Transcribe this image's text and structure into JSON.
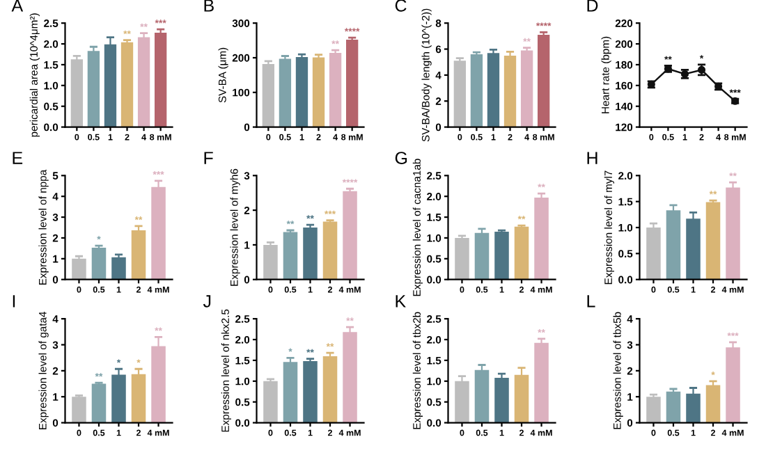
{
  "chart_data": [
    {
      "type": "bar",
      "title": "A",
      "ylabel": "pericardial area (10^4μm²)",
      "categories": [
        "0",
        "0.5",
        "1",
        "2",
        "4",
        "8 mM"
      ],
      "values": [
        1.63,
        1.83,
        1.99,
        2.04,
        2.16,
        2.27
      ],
      "errors": [
        0.08,
        0.1,
        0.17,
        0.05,
        0.1,
        0.08
      ],
      "colors": [
        "#bdbdbd",
        "#7fa3aa",
        "#4e7585",
        "#d9b574",
        "#dcb1bf",
        "#b5646c"
      ],
      "ylim": [
        0,
        2.5
      ],
      "yticks": [
        {
          "value": 0,
          "label": "0.0"
        },
        {
          "value": 0.5,
          "label": "0.5"
        },
        {
          "value": 1,
          "label": "1.0"
        },
        {
          "value": 1.5,
          "label": "1.5"
        },
        {
          "value": 2,
          "label": "2.0"
        },
        {
          "value": 2.5,
          "label": "2.5"
        }
      ],
      "annotations": [
        {
          "text": "**",
          "x": "2",
          "y": 2.09
        },
        {
          "text": "**",
          "x": "4",
          "y": 2.26
        },
        {
          "text": "***",
          "x": "8 mM",
          "y": 2.35
        }
      ]
    },
    {
      "type": "bar",
      "title": "B",
      "ylabel": "SV-BA (μm)",
      "categories": [
        "0",
        "0.5",
        "1",
        "2",
        "4",
        "8 mM"
      ],
      "values": [
        182,
        197,
        202,
        201,
        214,
        252
      ],
      "errors": [
        8,
        8,
        8,
        8,
        8,
        6
      ],
      "colors": [
        "#bdbdbd",
        "#7fa3aa",
        "#4e7585",
        "#d9b574",
        "#dcb1bf",
        "#b5646c"
      ],
      "ylim": [
        0,
        300
      ],
      "yticks": [
        0,
        100,
        200,
        300
      ],
      "annotations": [
        {
          "text": "**",
          "x": "4",
          "y": 222
        },
        {
          "text": "****",
          "x": "8 mM",
          "y": 258
        }
      ]
    },
    {
      "type": "bar",
      "title": "C",
      "ylabel": "SV-BA/Body length (10^(-2))",
      "categories": [
        "0",
        "0.5",
        "1",
        "2",
        "4",
        "8 mM"
      ],
      "values": [
        5.1,
        5.6,
        5.7,
        5.5,
        5.9,
        7.1
      ],
      "errors": [
        0.2,
        0.15,
        0.25,
        0.3,
        0.2,
        0.2
      ],
      "colors": [
        "#bdbdbd",
        "#7fa3aa",
        "#4e7585",
        "#d9b574",
        "#dcb1bf",
        "#b5646c"
      ],
      "ylim": [
        0,
        8
      ],
      "yticks": [
        0,
        2,
        4,
        6,
        8
      ],
      "annotations": [
        {
          "text": "**",
          "x": "4",
          "y": 6.1
        },
        {
          "text": "****",
          "x": "8 mM",
          "y": 7.3
        }
      ]
    },
    {
      "type": "line",
      "title": "D",
      "ylabel": "Heart rate (bpm)",
      "categories": [
        "0",
        "0.5",
        "1",
        "2",
        "4",
        "8 mM"
      ],
      "values": [
        161,
        176,
        171,
        175,
        159,
        145
      ],
      "errors": [
        3,
        3,
        4,
        5,
        3,
        2
      ],
      "color": "#111111",
      "marker": "circle",
      "ylim": [
        120,
        220
      ],
      "yticks": [
        120,
        140,
        160,
        180,
        200,
        220
      ],
      "annotations": [
        {
          "text": "**",
          "x": "0.5",
          "y": 179
        },
        {
          "text": "*",
          "x": "2",
          "y": 180
        },
        {
          "text": "***",
          "x": "8 mM",
          "y": 147
        }
      ]
    },
    {
      "type": "bar",
      "title": "E",
      "ylabel": "Expression level of nppa",
      "categories": [
        "0",
        "0.5",
        "1",
        "2",
        "4 mM"
      ],
      "values": [
        1.0,
        1.53,
        1.07,
        2.37,
        4.45
      ],
      "errors": [
        0.12,
        0.1,
        0.13,
        0.2,
        0.3
      ],
      "colors": [
        "#bdbdbd",
        "#7fa3aa",
        "#4e7585",
        "#d9b574",
        "#dcb1bf"
      ],
      "ylim": [
        0,
        5
      ],
      "yticks": [
        0,
        1,
        2,
        3,
        4,
        5
      ],
      "annotations": [
        {
          "text": "*",
          "x": "0.5",
          "y": 1.63
        },
        {
          "text": "**",
          "x": "2",
          "y": 2.57
        },
        {
          "text": "***",
          "x": "4 mM",
          "y": 4.75
        }
      ]
    },
    {
      "type": "bar",
      "title": "F",
      "ylabel": "Expression level of myh6",
      "categories": [
        "0",
        "0.5",
        "1",
        "2",
        "4 mM"
      ],
      "values": [
        1.0,
        1.37,
        1.5,
        1.67,
        2.55
      ],
      "errors": [
        0.07,
        0.05,
        0.08,
        0.04,
        0.07
      ],
      "colors": [
        "#bdbdbd",
        "#7fa3aa",
        "#4e7585",
        "#d9b574",
        "#dcb1bf"
      ],
      "ylim": [
        0,
        3
      ],
      "yticks": [
        0,
        1,
        2,
        3
      ],
      "annotations": [
        {
          "text": "**",
          "x": "0.5",
          "y": 1.42
        },
        {
          "text": "**",
          "x": "1",
          "y": 1.58
        },
        {
          "text": "***",
          "x": "2",
          "y": 1.71
        },
        {
          "text": "****",
          "x": "4 mM",
          "y": 2.62
        }
      ]
    },
    {
      "type": "bar",
      "title": "G",
      "ylabel": "Expression level of cacna1ab",
      "categories": [
        "0",
        "0.5",
        "1",
        "2",
        "4 mM"
      ],
      "values": [
        1.0,
        1.12,
        1.15,
        1.27,
        1.97
      ],
      "errors": [
        0.05,
        0.1,
        0.03,
        0.03,
        0.1
      ],
      "colors": [
        "#bdbdbd",
        "#7fa3aa",
        "#4e7585",
        "#d9b574",
        "#dcb1bf"
      ],
      "ylim": [
        0,
        2.5
      ],
      "yticks": [
        {
          "value": 0,
          "label": "0.0"
        },
        {
          "value": 0.5,
          "label": "0.5"
        },
        {
          "value": 1,
          "label": "1.0"
        },
        {
          "value": 1.5,
          "label": "1.5"
        },
        {
          "value": 2,
          "label": "2.0"
        },
        {
          "value": 2.5,
          "label": "2.5"
        }
      ],
      "annotations": [
        {
          "text": "**",
          "x": "2",
          "y": 1.3
        },
        {
          "text": "**",
          "x": "4 mM",
          "y": 2.07
        }
      ]
    },
    {
      "type": "bar",
      "title": "H",
      "ylabel": "Expression level of myl7",
      "categories": [
        "0",
        "0.5",
        "1",
        "2",
        "4 mM"
      ],
      "values": [
        1.0,
        1.33,
        1.17,
        1.49,
        1.77
      ],
      "errors": [
        0.08,
        0.1,
        0.12,
        0.03,
        0.1
      ],
      "colors": [
        "#bdbdbd",
        "#7fa3aa",
        "#4e7585",
        "#d9b574",
        "#dcb1bf"
      ],
      "ylim": [
        0,
        2
      ],
      "yticks": [
        {
          "value": 0,
          "label": "0.0"
        },
        {
          "value": 0.5,
          "label": "0.5"
        },
        {
          "value": 1,
          "label": "1.0"
        },
        {
          "value": 1.5,
          "label": "1.5"
        },
        {
          "value": 2,
          "label": "2.0"
        }
      ],
      "annotations": [
        {
          "text": "**",
          "x": "2",
          "y": 1.52
        },
        {
          "text": "**",
          "x": "4 mM",
          "y": 1.87
        }
      ]
    },
    {
      "type": "bar",
      "title": "I",
      "ylabel": "Expression level of gata4",
      "categories": [
        "0",
        "0.5",
        "1",
        "2",
        "4 mM"
      ],
      "values": [
        1.0,
        1.5,
        1.85,
        1.87,
        2.95
      ],
      "errors": [
        0.05,
        0.04,
        0.22,
        0.2,
        0.35
      ],
      "colors": [
        "#bdbdbd",
        "#7fa3aa",
        "#4e7585",
        "#d9b574",
        "#dcb1bf"
      ],
      "ylim": [
        0,
        4
      ],
      "yticks": [
        0,
        1,
        2,
        3,
        4
      ],
      "annotations": [
        {
          "text": "**",
          "x": "0.5",
          "y": 1.54
        },
        {
          "text": "*",
          "x": "1",
          "y": 2.07
        },
        {
          "text": "*",
          "x": "2",
          "y": 2.07
        },
        {
          "text": "**",
          "x": "4 mM",
          "y": 3.3
        }
      ]
    },
    {
      "type": "bar",
      "title": "J",
      "ylabel": "Expression level of nkx2.5",
      "categories": [
        "0",
        "0.5",
        "1",
        "2",
        "4 mM"
      ],
      "values": [
        1.0,
        1.46,
        1.48,
        1.6,
        2.18
      ],
      "errors": [
        0.05,
        0.1,
        0.06,
        0.08,
        0.12
      ],
      "colors": [
        "#bdbdbd",
        "#7fa3aa",
        "#4e7585",
        "#d9b574",
        "#dcb1bf"
      ],
      "ylim": [
        0,
        2.5
      ],
      "yticks": [
        {
          "value": 0,
          "label": "0.0"
        },
        {
          "value": 0.5,
          "label": "0.5"
        },
        {
          "value": 1,
          "label": "1.0"
        },
        {
          "value": 1.5,
          "label": "1.5"
        },
        {
          "value": 2,
          "label": "2.0"
        },
        {
          "value": 2.5,
          "label": "2.5"
        }
      ],
      "annotations": [
        {
          "text": "*",
          "x": "0.5",
          "y": 1.56
        },
        {
          "text": "**",
          "x": "1",
          "y": 1.54
        },
        {
          "text": "**",
          "x": "2",
          "y": 1.68
        },
        {
          "text": "**",
          "x": "4 mM",
          "y": 2.3
        }
      ]
    },
    {
      "type": "bar",
      "title": "K",
      "ylabel": "Expression level of tbx2b",
      "categories": [
        "0",
        "0.5",
        "1",
        "2",
        "4 mM"
      ],
      "values": [
        1.0,
        1.27,
        1.08,
        1.15,
        1.92
      ],
      "errors": [
        0.12,
        0.12,
        0.1,
        0.17,
        0.1
      ],
      "colors": [
        "#bdbdbd",
        "#7fa3aa",
        "#4e7585",
        "#d9b574",
        "#dcb1bf"
      ],
      "ylim": [
        0,
        2.5
      ],
      "yticks": [
        {
          "value": 0,
          "label": "0.0"
        },
        {
          "value": 0.5,
          "label": "0.5"
        },
        {
          "value": 1,
          "label": "1.0"
        },
        {
          "value": 1.5,
          "label": "1.5"
        },
        {
          "value": 2,
          "label": "2.0"
        },
        {
          "value": 2.5,
          "label": "2.5"
        }
      ],
      "annotations": [
        {
          "text": "**",
          "x": "4 mM",
          "y": 2.02
        }
      ]
    },
    {
      "type": "bar",
      "title": "L",
      "ylabel": "Expression level of tbx5b",
      "categories": [
        "0",
        "0.5",
        "1",
        "2",
        "4 mM"
      ],
      "values": [
        1.0,
        1.2,
        1.12,
        1.45,
        2.9
      ],
      "errors": [
        0.08,
        0.1,
        0.22,
        0.15,
        0.2
      ],
      "colors": [
        "#bdbdbd",
        "#7fa3aa",
        "#4e7585",
        "#d9b574",
        "#dcb1bf"
      ],
      "ylim": [
        0,
        4
      ],
      "yticks": [
        0,
        1,
        2,
        3,
        4
      ],
      "annotations": [
        {
          "text": "*",
          "x": "2",
          "y": 1.6
        },
        {
          "text": "***",
          "x": "4 mM",
          "y": 3.1
        }
      ]
    }
  ]
}
